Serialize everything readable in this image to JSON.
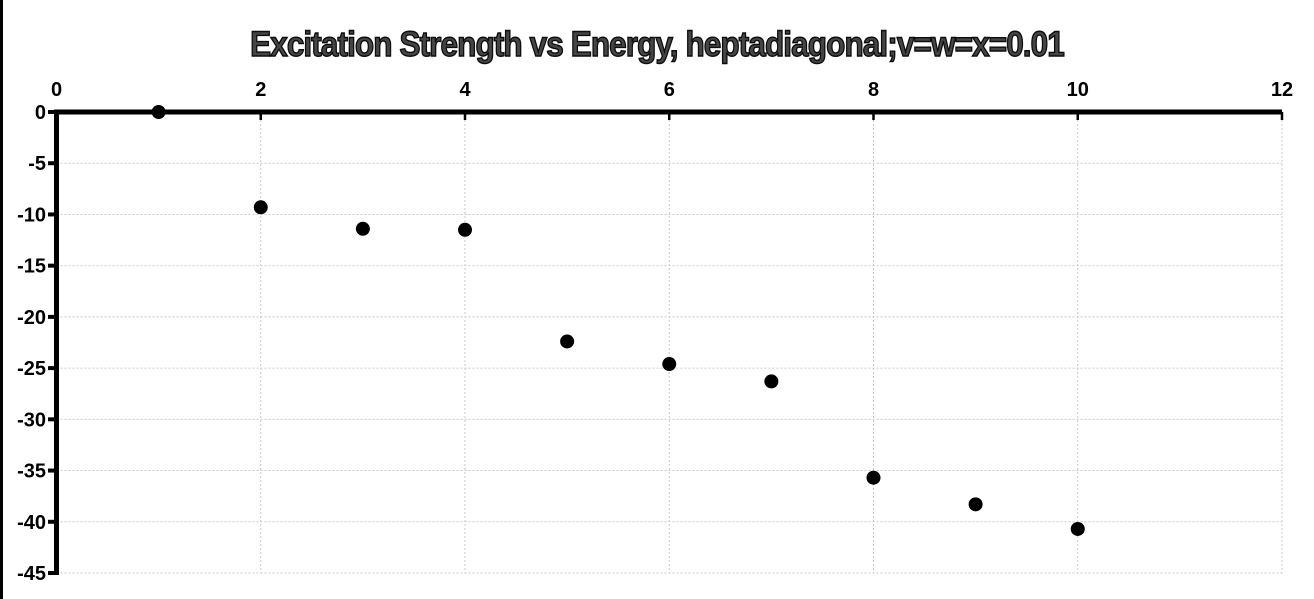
{
  "chart_data": {
    "type": "scatter",
    "title": "Excitation Strength vs Energy, heptadiagonal;v=w=x=0.01",
    "xlabel": "",
    "ylabel": "",
    "x": [
      1,
      2,
      3,
      4,
      5,
      6,
      7,
      8,
      9,
      10
    ],
    "y": [
      0,
      -9.3,
      -11.4,
      -11.5,
      -22.4,
      -24.6,
      -26.3,
      -35.7,
      -38.3,
      -40.7
    ],
    "xlim": [
      0,
      12
    ],
    "ylim": [
      -45,
      0
    ],
    "x_ticks": [
      0,
      2,
      4,
      6,
      8,
      10,
      12
    ],
    "y_ticks": [
      0,
      -5,
      -10,
      -15,
      -20,
      -25,
      -30,
      -35,
      -40,
      -45
    ],
    "x_axis_position": "top",
    "grid": true,
    "gridline_style": "dotted",
    "legend": "none",
    "marker": {
      "shape": "circle",
      "color": "#000000",
      "radius_px": 7
    }
  },
  "colors": {
    "background": "#ffffff",
    "axis": "#000000",
    "tick_label": "#000000",
    "gridline": "#c9c9c9",
    "title_fill": "#454545",
    "title_outline": "#0d0d0d",
    "point": "#000000",
    "left_edge_line": "#000000"
  }
}
